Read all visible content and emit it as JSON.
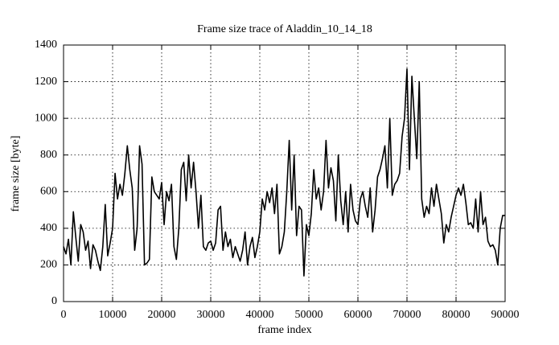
{
  "chart_data": {
    "type": "line",
    "title": "Frame size trace of Aladdin_10_14_18",
    "x_label": "frame index",
    "y_label": "frame size [byte]",
    "xlim": [
      0,
      90000
    ],
    "ylim": [
      0,
      1400
    ],
    "xticks": [
      0,
      10000,
      20000,
      30000,
      40000,
      50000,
      60000,
      70000,
      80000,
      90000
    ],
    "yticks": [
      0,
      200,
      400,
      600,
      800,
      1000,
      1200,
      1400
    ],
    "grid": true,
    "color": "#000000",
    "x": [
      0,
      500,
      1000,
      1500,
      2000,
      2500,
      3000,
      3500,
      4000,
      4500,
      5000,
      5500,
      6000,
      6500,
      7000,
      7500,
      8000,
      8500,
      9000,
      9500,
      10000,
      10500,
      11000,
      11500,
      12000,
      12500,
      13000,
      13500,
      14000,
      14500,
      15000,
      15500,
      16000,
      16500,
      17000,
      17500,
      18000,
      18500,
      19000,
      19500,
      20000,
      20500,
      21000,
      21500,
      22000,
      22500,
      23000,
      23500,
      24000,
      24500,
      25000,
      25500,
      26000,
      26500,
      27000,
      27500,
      28000,
      28500,
      29000,
      29500,
      30000,
      30500,
      31000,
      31500,
      32000,
      32500,
      33000,
      33500,
      34000,
      34500,
      35000,
      35500,
      36000,
      36500,
      37000,
      37500,
      38000,
      38500,
      39000,
      39500,
      40000,
      40500,
      41000,
      41500,
      42000,
      42500,
      43000,
      43500,
      44000,
      44500,
      45000,
      45500,
      46000,
      46500,
      47000,
      47500,
      48000,
      48500,
      49000,
      49500,
      50000,
      50500,
      51000,
      51500,
      52000,
      52500,
      53000,
      53500,
      54000,
      54500,
      55000,
      55500,
      56000,
      56500,
      57000,
      57500,
      58000,
      58500,
      59000,
      59500,
      60000,
      60500,
      61000,
      61500,
      62000,
      62500,
      63000,
      63500,
      64000,
      64500,
      65000,
      65500,
      66000,
      66500,
      67000,
      67500,
      68000,
      68500,
      69000,
      69500,
      70000,
      70500,
      71000,
      71500,
      72000,
      72500,
      73000,
      73500,
      74000,
      74500,
      75000,
      75500,
      76000,
      76500,
      77000,
      77500,
      78000,
      78500,
      79000,
      79500,
      80000,
      80500,
      81000,
      81500,
      82000,
      82500,
      83000,
      83500,
      84000,
      84500,
      85000,
      85500,
      86000,
      86500,
      87000,
      87500,
      88000,
      88500,
      89000,
      89500,
      90000
    ],
    "values": [
      300,
      260,
      340,
      200,
      490,
      350,
      220,
      420,
      380,
      280,
      330,
      180,
      310,
      280,
      220,
      170,
      300,
      530,
      250,
      320,
      400,
      700,
      560,
      640,
      580,
      700,
      850,
      720,
      620,
      280,
      400,
      850,
      750,
      200,
      210,
      230,
      680,
      600,
      580,
      560,
      650,
      420,
      600,
      550,
      640,
      300,
      230,
      400,
      720,
      760,
      550,
      800,
      620,
      760,
      600,
      400,
      580,
      300,
      280,
      320,
      330,
      280,
      320,
      500,
      520,
      280,
      380,
      300,
      340,
      240,
      300,
      260,
      220,
      280,
      380,
      200,
      300,
      350,
      240,
      300,
      380,
      560,
      500,
      600,
      540,
      620,
      480,
      640,
      260,
      300,
      380,
      600,
      880,
      500,
      800,
      360,
      520,
      500,
      140,
      420,
      360,
      480,
      720,
      560,
      620,
      500,
      600,
      880,
      620,
      730,
      660,
      440,
      800,
      550,
      420,
      600,
      380,
      640,
      500,
      440,
      420,
      560,
      600,
      520,
      460,
      620,
      380,
      500,
      680,
      720,
      780,
      850,
      620,
      1000,
      580,
      640,
      660,
      700,
      900,
      1000,
      1270,
      720,
      1230,
      1000,
      780,
      1200,
      560,
      460,
      520,
      480,
      620,
      520,
      640,
      560,
      480,
      320,
      420,
      380,
      460,
      520,
      580,
      620,
      580,
      640,
      540,
      420,
      430,
      400,
      560,
      380,
      600,
      420,
      460,
      330,
      300,
      310,
      280,
      200,
      400,
      470,
      470
    ]
  }
}
